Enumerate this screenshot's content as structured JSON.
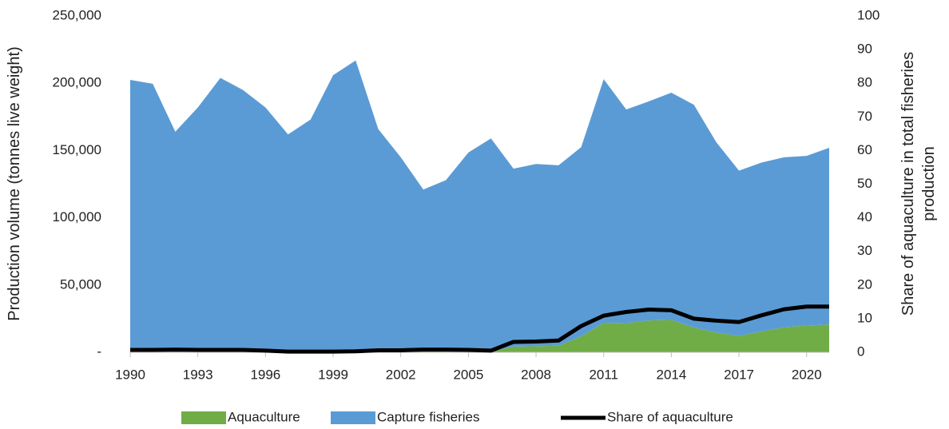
{
  "chart_data": {
    "type": "area",
    "stacked": true,
    "ylabel": "Production volume (tonnes live weight)",
    "y2label": "Share of aquaculture in total fisheries production",
    "x": [
      1990,
      1991,
      1992,
      1993,
      1994,
      1995,
      1996,
      1997,
      1998,
      1999,
      2000,
      2001,
      2002,
      2003,
      2004,
      2005,
      2006,
      2007,
      2008,
      2009,
      2010,
      2011,
      2012,
      2013,
      2014,
      2015,
      2016,
      2017,
      2018,
      2019,
      2020,
      2021
    ],
    "xlim": [
      1990,
      2021
    ],
    "xticks": [
      1990,
      1993,
      1996,
      1999,
      2002,
      2005,
      2008,
      2011,
      2014,
      2017,
      2020
    ],
    "ylim": [
      0,
      250000
    ],
    "yticks": [
      {
        "value": 0,
        "label": "-"
      },
      {
        "value": 50000,
        "label": "50,000"
      },
      {
        "value": 100000,
        "label": "100,000"
      },
      {
        "value": 150000,
        "label": "150,000"
      },
      {
        "value": 200000,
        "label": "200,000"
      },
      {
        "value": 250000,
        "label": "250,000"
      }
    ],
    "y2lim": [
      0,
      100
    ],
    "y2ticks": [
      0,
      10,
      20,
      30,
      40,
      50,
      60,
      70,
      80,
      90,
      100
    ],
    "legend": "bottom",
    "series": [
      {
        "name": "Aquaculture",
        "type": "area",
        "color": "#70ad47",
        "values": [
          1400,
          1400,
          1300,
          1300,
          1400,
          1300,
          900,
          300,
          300,
          400,
          600,
          1000,
          900,
          1000,
          1000,
          1000,
          800,
          4200,
          4500,
          4900,
          11900,
          22000,
          21700,
          23700,
          24100,
          18400,
          14700,
          12200,
          15500,
          18600,
          19900,
          20700
        ]
      },
      {
        "name": "Capture fisheries",
        "type": "area",
        "color": "#5b9bd5",
        "values": [
          201100,
          198200,
          162700,
          180700,
          202600,
          193700,
          181100,
          161700,
          172700,
          205600,
          216400,
          165000,
          144100,
          120000,
          127000,
          147500,
          158200,
          132300,
          135500,
          134100,
          140600,
          181000,
          158800,
          162800,
          168900,
          165600,
          141300,
          122800,
          125500,
          126400,
          126100,
          131300
        ]
      },
      {
        "name": "Share of aquaculture",
        "type": "line",
        "axis": "y2",
        "color": "#000000",
        "values": [
          0.7,
          0.7,
          0.8,
          0.7,
          0.7,
          0.7,
          0.5,
          0.2,
          0.2,
          0.2,
          0.3,
          0.6,
          0.6,
          0.8,
          0.8,
          0.7,
          0.5,
          3.1,
          3.2,
          3.5,
          7.8,
          10.9,
          12.0,
          12.7,
          12.5,
          10.0,
          9.4,
          9.0,
          11.0,
          12.8,
          13.6,
          13.6
        ]
      }
    ]
  }
}
